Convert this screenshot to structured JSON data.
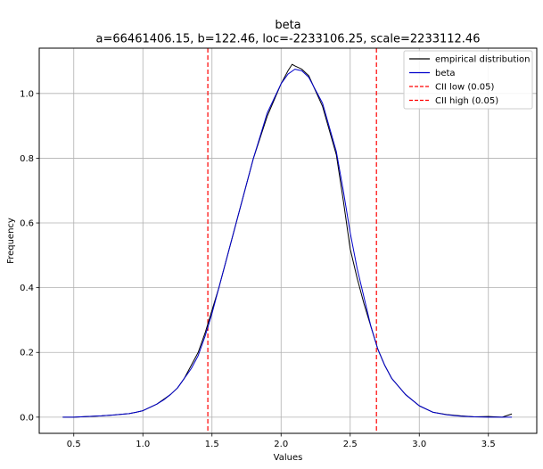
{
  "chart_data": {
    "type": "line",
    "title": "beta",
    "subtitle": "a=66461406.15, b=122.46, loc=-2233106.25, scale=2233112.46",
    "xlabel": "Values",
    "ylabel": "Frequency",
    "xlim": [
      0.25,
      3.85
    ],
    "ylim": [
      -0.05,
      1.14
    ],
    "xticks": [
      0.5,
      1.0,
      1.5,
      2.0,
      2.5,
      3.0,
      3.5
    ],
    "xtick_labels": [
      "0.5",
      "1.0",
      "1.5",
      "2.0",
      "2.5",
      "3.0",
      "3.5"
    ],
    "yticks": [
      0.0,
      0.2,
      0.4,
      0.6,
      0.8,
      1.0
    ],
    "ytick_labels": [
      "0.0",
      "0.2",
      "0.4",
      "0.6",
      "0.8",
      "1.0"
    ],
    "grid": true,
    "legend_position": "top-right",
    "series": [
      {
        "name": "empirical distribution",
        "color": "#000000",
        "x": [
          0.42,
          0.5,
          0.6,
          0.7,
          0.8,
          0.9,
          0.95,
          1.0,
          1.05,
          1.1,
          1.15,
          1.2,
          1.25,
          1.3,
          1.35,
          1.4,
          1.45,
          1.5,
          1.55,
          1.6,
          1.7,
          1.8,
          1.9,
          2.0,
          2.05,
          2.08,
          2.1,
          2.15,
          2.2,
          2.3,
          2.4,
          2.45,
          2.5,
          2.55,
          2.6,
          2.65,
          2.7,
          2.75,
          2.8,
          2.9,
          3.0,
          3.1,
          3.2,
          3.3,
          3.4,
          3.5,
          3.6,
          3.67
        ],
        "y": [
          0.0,
          0.0,
          0.002,
          0.004,
          0.007,
          0.011,
          0.015,
          0.02,
          0.03,
          0.04,
          0.055,
          0.07,
          0.09,
          0.12,
          0.16,
          0.2,
          0.26,
          0.33,
          0.4,
          0.48,
          0.64,
          0.8,
          0.93,
          1.03,
          1.07,
          1.09,
          1.085,
          1.075,
          1.055,
          0.96,
          0.81,
          0.67,
          0.52,
          0.43,
          0.35,
          0.28,
          0.21,
          0.16,
          0.12,
          0.07,
          0.035,
          0.015,
          0.008,
          0.004,
          0.001,
          0.002,
          0.0,
          0.01
        ]
      },
      {
        "name": "beta",
        "color": "#0000cc",
        "x": [
          0.42,
          0.5,
          0.6,
          0.7,
          0.8,
          0.9,
          0.95,
          1.0,
          1.05,
          1.1,
          1.15,
          1.2,
          1.25,
          1.3,
          1.35,
          1.4,
          1.45,
          1.5,
          1.55,
          1.6,
          1.7,
          1.8,
          1.9,
          2.0,
          2.05,
          2.1,
          2.15,
          2.2,
          2.3,
          2.4,
          2.45,
          2.5,
          2.55,
          2.6,
          2.65,
          2.7,
          2.75,
          2.8,
          2.9,
          3.0,
          3.1,
          3.2,
          3.3,
          3.4,
          3.5,
          3.6,
          3.67
        ],
        "y": [
          0.0,
          0.0,
          0.002,
          0.004,
          0.007,
          0.011,
          0.015,
          0.02,
          0.03,
          0.04,
          0.053,
          0.07,
          0.09,
          0.12,
          0.15,
          0.19,
          0.25,
          0.32,
          0.4,
          0.48,
          0.64,
          0.8,
          0.94,
          1.03,
          1.06,
          1.075,
          1.07,
          1.05,
          0.97,
          0.82,
          0.7,
          0.57,
          0.46,
          0.37,
          0.28,
          0.21,
          0.16,
          0.12,
          0.07,
          0.035,
          0.015,
          0.007,
          0.003,
          0.001,
          0.0,
          0.0,
          0.0
        ]
      },
      {
        "name": "CII low (0.05)",
        "color": "#ff0000",
        "style": "dashed",
        "vline_x": 1.47
      },
      {
        "name": "CII high (0.05)",
        "color": "#ff0000",
        "style": "dashed",
        "vline_x": 2.69
      }
    ]
  }
}
